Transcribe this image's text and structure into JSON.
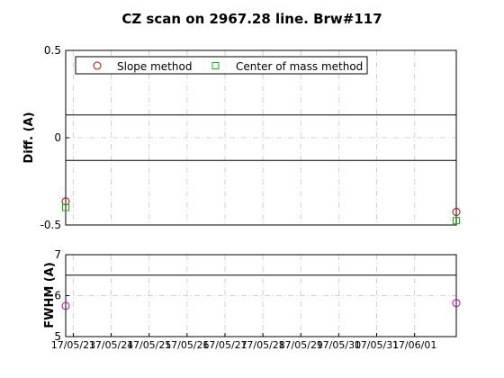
{
  "chart_data": [
    {
      "type": "scatter",
      "title": "CZ scan on 2967.28 line. Brw#117",
      "ylabel": "Diff.  (A)",
      "ylim": [
        -0.5,
        0.5
      ],
      "yticks": [
        "0.5",
        "0",
        "-0.5"
      ],
      "x_ticks": [
        "17/05/23",
        "17/05/24",
        "17/05/25",
        "17/05/26",
        "17/05/27",
        "17/05/28",
        "17/05/29",
        "17/05/30",
        "17/05/31",
        "17/06/01"
      ],
      "x_range": [
        "17/05/22.8",
        "17/06/02.1"
      ],
      "reference_lines": [
        0.13,
        -0.13
      ],
      "grid": true,
      "legend": {
        "placement": "top-left",
        "orientation": "horizontal"
      },
      "series": [
        {
          "name": "Slope method",
          "marker": "circle",
          "color": "#c00000",
          "x": [
            "17/05/22.8",
            "17/06/02.1"
          ],
          "y": [
            -0.365,
            -0.425
          ]
        },
        {
          "name": "Center of mass method",
          "marker": "square",
          "color": "#00c000",
          "x": [
            "17/05/22.8",
            "17/06/02.1"
          ],
          "y": [
            -0.4,
            -0.475
          ]
        }
      ]
    },
    {
      "type": "scatter",
      "ylabel": "FWHM (A)",
      "ylim": [
        5,
        7
      ],
      "yticks": [
        "7",
        "6",
        "5"
      ],
      "reference_lines": [
        6.5
      ],
      "grid": true,
      "series": [
        {
          "marker": "circle",
          "color": "#c000c0",
          "x": [
            "17/05/22.8",
            "17/06/02.1"
          ],
          "y": [
            5.75,
            5.82
          ]
        }
      ]
    }
  ]
}
